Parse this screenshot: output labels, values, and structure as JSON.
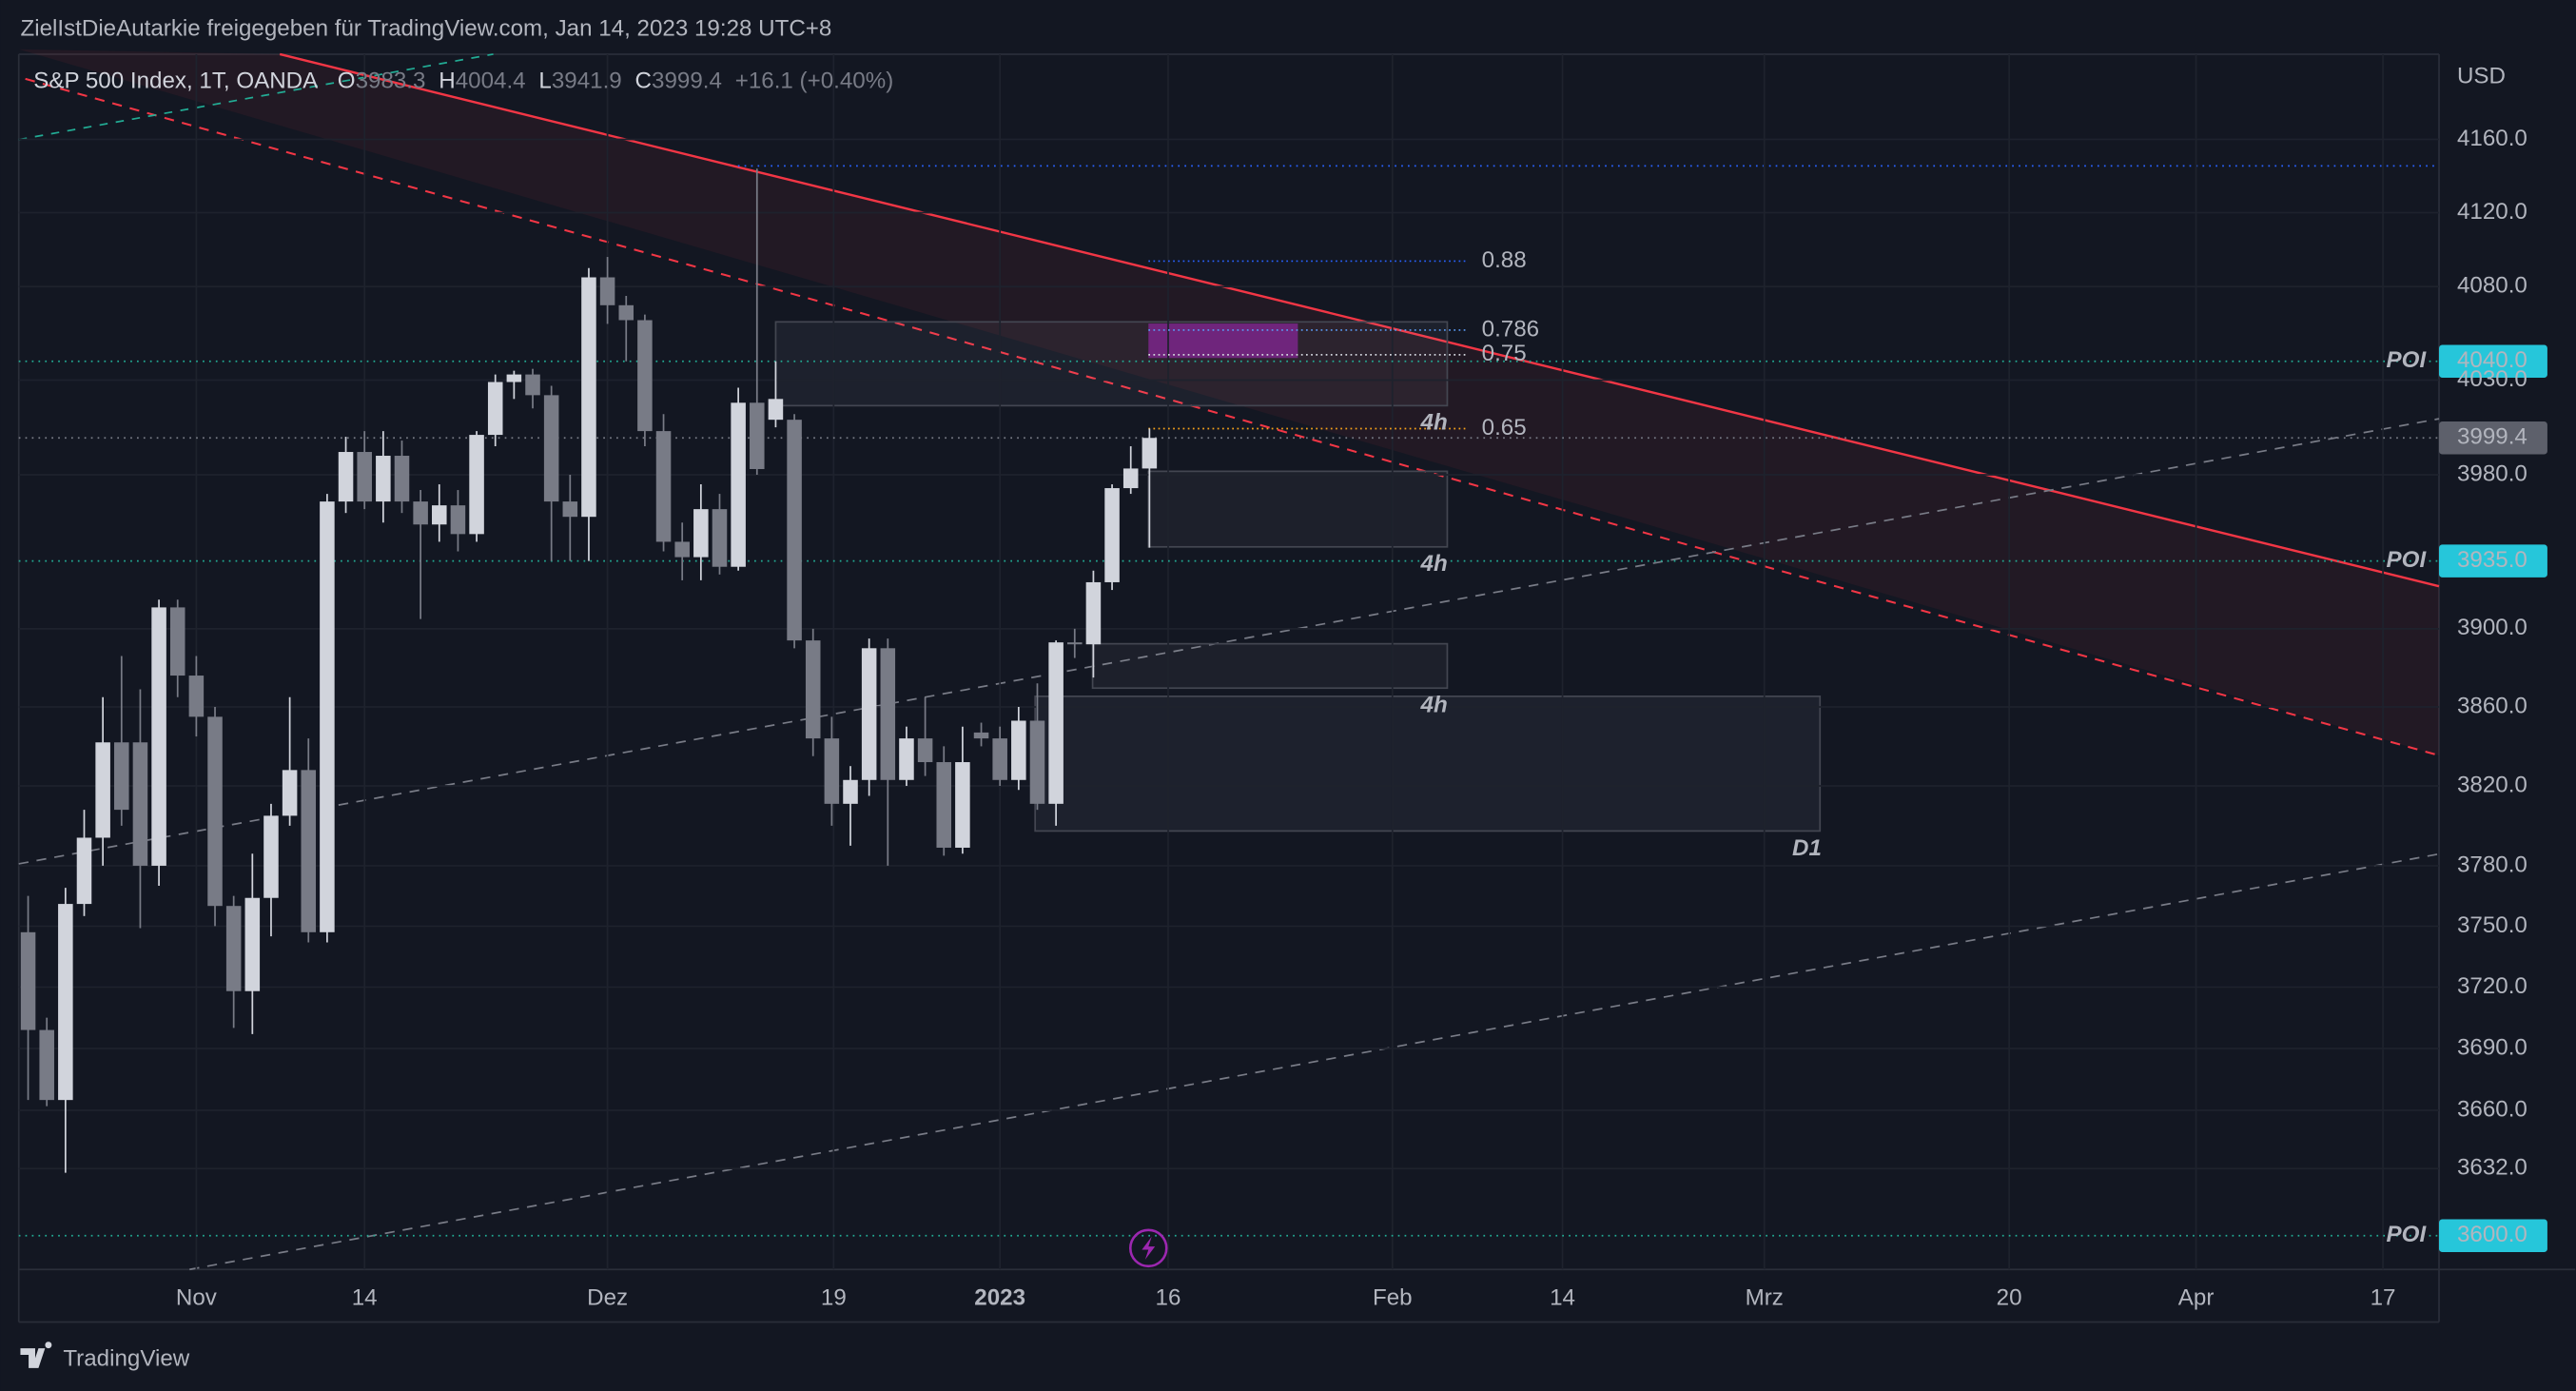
{
  "chart_data": {
    "type": "candlestick",
    "header": "ZielIstDieAutarkie freigegeben für TradingView.com, Jan 14, 2023 19:28 UTC+8",
    "symbol": "S&P 500 Index, 1T, OANDA",
    "legend": [
      {
        "label": "O",
        "value": 3983.3
      },
      {
        "label": "H",
        "value": 4004.4
      },
      {
        "label": "L",
        "value": 3941.9
      },
      {
        "label": "C",
        "value": 3999.4
      }
    ],
    "change": "+16.1 (+0.40%)",
    "currency": "USD",
    "brand": "TradingView",
    "log_scale": true,
    "up_color": "#d1d4dc",
    "down_color": "#787b86",
    "ylim": [
      3584,
      4207
    ],
    "xlim": [
      -0.5,
      129
    ],
    "yticks": [
      {
        "value": 4160,
        "label": "4160.0"
      },
      {
        "value": 4120,
        "label": "4120.0"
      },
      {
        "value": 4080,
        "label": "4080.0"
      },
      {
        "value": 4030,
        "label": "4030.0"
      },
      {
        "value": 3980,
        "label": "3980.0"
      },
      {
        "value": 3900,
        "label": "3900.0"
      },
      {
        "value": 3860,
        "label": "3860.0"
      },
      {
        "value": 3820,
        "label": "3820.0"
      },
      {
        "value": 3780,
        "label": "3780.0"
      },
      {
        "value": 3750,
        "label": "3750.0"
      },
      {
        "value": 3720,
        "label": "3720.0"
      },
      {
        "value": 3690,
        "label": "3690.0"
      },
      {
        "value": 3660,
        "label": "3660.0"
      },
      {
        "value": 3632,
        "label": "3632.0"
      }
    ],
    "xticks": [
      {
        "value": 9,
        "label": "Nov"
      },
      {
        "value": 18,
        "label": "14"
      },
      {
        "value": 31,
        "label": "Dez"
      },
      {
        "value": 43.1,
        "label": "19"
      },
      {
        "value": 52,
        "label": "2023"
      },
      {
        "value": 61,
        "label": "16"
      },
      {
        "value": 73,
        "label": "Feb"
      },
      {
        "value": 82.1,
        "label": "14"
      },
      {
        "value": 92.9,
        "label": "Mrz"
      },
      {
        "value": 106,
        "label": "20"
      },
      {
        "value": 116,
        "label": "Apr"
      },
      {
        "value": 126,
        "label": "17"
      }
    ],
    "candles": [
      {
        "open": 3747,
        "high": 3765,
        "low": 3665,
        "close": 3699
      },
      {
        "open": 3699,
        "high": 3705,
        "low": 3662,
        "close": 3665
      },
      {
        "open": 3665,
        "high": 3769,
        "low": 3630,
        "close": 3761
      },
      {
        "open": 3761,
        "high": 3808,
        "low": 3755,
        "close": 3794
      },
      {
        "open": 3794,
        "high": 3865,
        "low": 3780,
        "close": 3842
      },
      {
        "open": 3842,
        "high": 3886,
        "low": 3800,
        "close": 3808
      },
      {
        "open": 3842,
        "high": 3869,
        "low": 3749,
        "close": 3780
      },
      {
        "open": 3780,
        "high": 3915,
        "low": 3770,
        "close": 3911
      },
      {
        "open": 3911,
        "high": 3915,
        "low": 3865,
        "close": 3876
      },
      {
        "open": 3876,
        "high": 3886,
        "low": 3845,
        "close": 3855
      },
      {
        "open": 3855,
        "high": 3860,
        "low": 3750,
        "close": 3760
      },
      {
        "open": 3760,
        "high": 3765,
        "low": 3700,
        "close": 3718
      },
      {
        "open": 3718,
        "high": 3786,
        "low": 3697,
        "close": 3764
      },
      {
        "open": 3764,
        "high": 3811,
        "low": 3745,
        "close": 3805
      },
      {
        "open": 3805,
        "high": 3865,
        "low": 3800,
        "close": 3828
      },
      {
        "open": 3828,
        "high": 3844,
        "low": 3742,
        "close": 3747
      },
      {
        "open": 3747,
        "high": 3970,
        "low": 3742,
        "close": 3966
      },
      {
        "open": 3966,
        "high": 4000,
        "low": 3960,
        "close": 3992
      },
      {
        "open": 3992,
        "high": 4003,
        "low": 3962,
        "close": 3966
      },
      {
        "open": 3966,
        "high": 4003,
        "low": 3955,
        "close": 3990
      },
      {
        "open": 3990,
        "high": 3998,
        "low": 3960,
        "close": 3966
      },
      {
        "open": 3966,
        "high": 3972,
        "low": 3905,
        "close": 3954
      },
      {
        "open": 3954,
        "high": 3975,
        "low": 3945,
        "close": 3964
      },
      {
        "open": 3964,
        "high": 3972,
        "low": 3940,
        "close": 3949
      },
      {
        "open": 3949,
        "high": 4003,
        "low": 3945,
        "close": 4001
      },
      {
        "open": 4001,
        "high": 4033,
        "low": 3995,
        "close": 4029
      },
      {
        "open": 4029,
        "high": 4035,
        "low": 4020,
        "close": 4033
      },
      {
        "open": 4033,
        "high": 4036,
        "low": 4015,
        "close": 4022
      },
      {
        "open": 4022,
        "high": 4027,
        "low": 3935,
        "close": 3966
      },
      {
        "open": 3966,
        "high": 3980,
        "low": 3935,
        "close": 3958
      },
      {
        "open": 3958,
        "high": 4090,
        "low": 3935,
        "close": 4085
      },
      {
        "open": 4085,
        "high": 4096,
        "low": 4060,
        "close": 4070
      },
      {
        "open": 4070,
        "high": 4075,
        "low": 4040,
        "close": 4062
      },
      {
        "open": 4062,
        "high": 4065,
        "low": 3995,
        "close": 4003
      },
      {
        "open": 4003,
        "high": 4012,
        "low": 3940,
        "close": 3945
      },
      {
        "open": 3945,
        "high": 3955,
        "low": 3925,
        "close": 3937
      },
      {
        "open": 3937,
        "high": 3975,
        "low": 3925,
        "close": 3962
      },
      {
        "open": 3962,
        "high": 3970,
        "low": 3928,
        "close": 3932
      },
      {
        "open": 3932,
        "high": 4026,
        "low": 3930,
        "close": 4018
      },
      {
        "open": 4018,
        "high": 4144,
        "low": 3980,
        "close": 3983
      },
      {
        "open": 4009,
        "high": 4040,
        "low": 4005,
        "close": 4020
      },
      {
        "open": 4009,
        "high": 4012,
        "low": 3890,
        "close": 3894
      },
      {
        "open": 3894,
        "high": 3900,
        "low": 3835,
        "close": 3844
      },
      {
        "open": 3844,
        "high": 3855,
        "low": 3800,
        "close": 3811
      },
      {
        "open": 3811,
        "high": 3830,
        "low": 3790,
        "close": 3823
      },
      {
        "open": 3823,
        "high": 3895,
        "low": 3815,
        "close": 3890
      },
      {
        "open": 3890,
        "high": 3895,
        "low": 3780,
        "close": 3823
      },
      {
        "open": 3823,
        "high": 3850,
        "low": 3820,
        "close": 3844
      },
      {
        "open": 3844,
        "high": 3865,
        "low": 3825,
        "close": 3832
      },
      {
        "open": 3832,
        "high": 3840,
        "low": 3785,
        "close": 3789
      },
      {
        "open": 3789,
        "high": 3850,
        "low": 3786,
        "close": 3832
      },
      {
        "open": 3847,
        "high": 3852,
        "low": 3840,
        "close": 3844
      },
      {
        "open": 3844,
        "high": 3850,
        "low": 3820,
        "close": 3823
      },
      {
        "open": 3823,
        "high": 3860,
        "low": 3818,
        "close": 3853
      },
      {
        "open": 3853,
        "high": 3872,
        "low": 3808,
        "close": 3811
      },
      {
        "open": 3811,
        "high": 3894,
        "low": 3800,
        "close": 3893
      },
      {
        "open": 3893,
        "high": 3900,
        "low": 3885,
        "close": 3892
      },
      {
        "open": 3892,
        "high": 3930,
        "low": 3875,
        "close": 3924
      },
      {
        "open": 3924,
        "high": 3975,
        "low": 3920,
        "close": 3973
      },
      {
        "open": 3973,
        "high": 3995,
        "low": 3970,
        "close": 3983.3
      },
      {
        "open": 3983.3,
        "high": 4004.4,
        "low": 3941.9,
        "close": 3999.4
      }
    ],
    "poi_levels": [
      {
        "label": "POI",
        "value": 4040,
        "value_label": "4040.0"
      },
      {
        "label": "POI",
        "value": 3935,
        "value_label": "3935.0"
      },
      {
        "label": "POI",
        "value": 3600,
        "value_label": "3600.0"
      }
    ],
    "last_price": {
      "value": 3999.4,
      "label": "3999.4"
    },
    "fib_levels": [
      {
        "level": 0.88,
        "color": "#2962ff"
      },
      {
        "level": 0.786,
        "color": "#5b9cf6"
      },
      {
        "level": 0.75,
        "color": "#d1d4dc"
      },
      {
        "level": 0.65,
        "color": "#f7a21b"
      }
    ],
    "zone_labels": [
      "4h",
      "4h",
      "4h",
      "D1"
    ]
  }
}
